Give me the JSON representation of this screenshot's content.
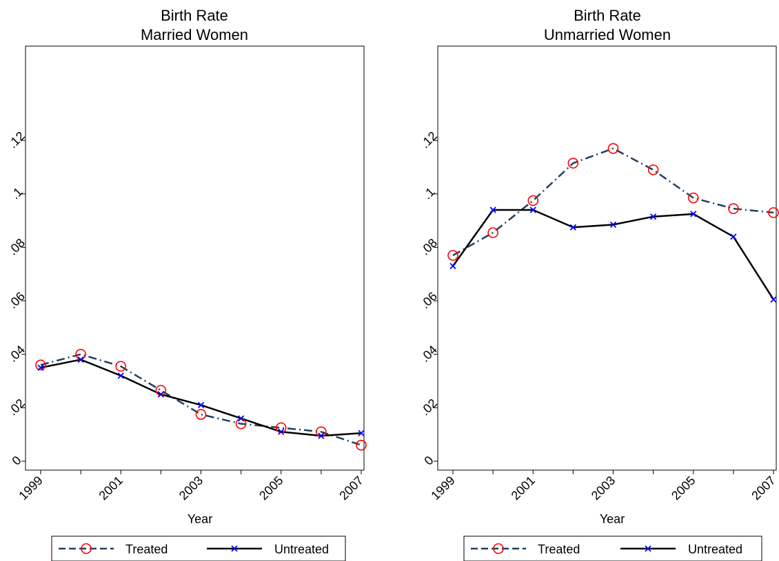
{
  "chart_data": [
    {
      "type": "line",
      "title": "Birth Rate",
      "subtitle": "Married Women",
      "xlabel": "Year",
      "ylabel": "",
      "x": [
        1999,
        2000,
        2001,
        2002,
        2003,
        2004,
        2005,
        2006,
        2007
      ],
      "xticks": [
        "1999",
        "2001",
        "2003",
        "2005",
        "2007"
      ],
      "xlim": [
        1999,
        2007
      ],
      "yticks": [
        "0",
        ".02",
        ".04",
        ".06",
        ".08",
        ".1",
        ".12"
      ],
      "ylim": [
        0,
        0.14
      ],
      "grid": false,
      "legend": "bottom",
      "series": [
        {
          "name": "Treated",
          "color": "#1f3f5f",
          "marker_color": "#ff0000",
          "marker": "circle",
          "line_style": "dash-dot",
          "values": [
            0.036,
            0.04,
            0.0355,
            0.0265,
            0.0175,
            0.014,
            0.0125,
            0.011,
            0.006
          ]
        },
        {
          "name": "Untreated",
          "color": "#000000",
          "marker_color": "#0000ff",
          "marker": "x",
          "line_style": "solid",
          "values": [
            0.035,
            0.038,
            0.032,
            0.025,
            0.021,
            0.016,
            0.011,
            0.0095,
            0.0105
          ]
        }
      ]
    },
    {
      "type": "line",
      "title": "Birth Rate",
      "subtitle": "Unmarried Women",
      "xlabel": "Year",
      "ylabel": "",
      "x": [
        1999,
        2000,
        2001,
        2002,
        2003,
        2004,
        2005,
        2006,
        2007
      ],
      "xticks": [
        "1999",
        "2001",
        "2003",
        "2005",
        "2007"
      ],
      "xlim": [
        1999,
        2007
      ],
      "yticks": [
        "0",
        ".02",
        ".04",
        ".06",
        ".08",
        ".1",
        ".12"
      ],
      "ylim": [
        0,
        0.14
      ],
      "grid": false,
      "legend": "bottom",
      "series": [
        {
          "name": "Treated",
          "color": "#1f3f5f",
          "marker_color": "#ff0000",
          "marker": "circle",
          "line_style": "dash-dot",
          "values": [
            0.077,
            0.0855,
            0.0975,
            0.1115,
            0.117,
            0.109,
            0.0985,
            0.0945,
            0.093
          ]
        },
        {
          "name": "Untreated",
          "color": "#000000",
          "marker_color": "#0000ff",
          "marker": "x",
          "line_style": "solid",
          "values": [
            0.073,
            0.094,
            0.094,
            0.0875,
            0.0885,
            0.0915,
            0.0925,
            0.084,
            0.0605
          ]
        }
      ]
    }
  ]
}
